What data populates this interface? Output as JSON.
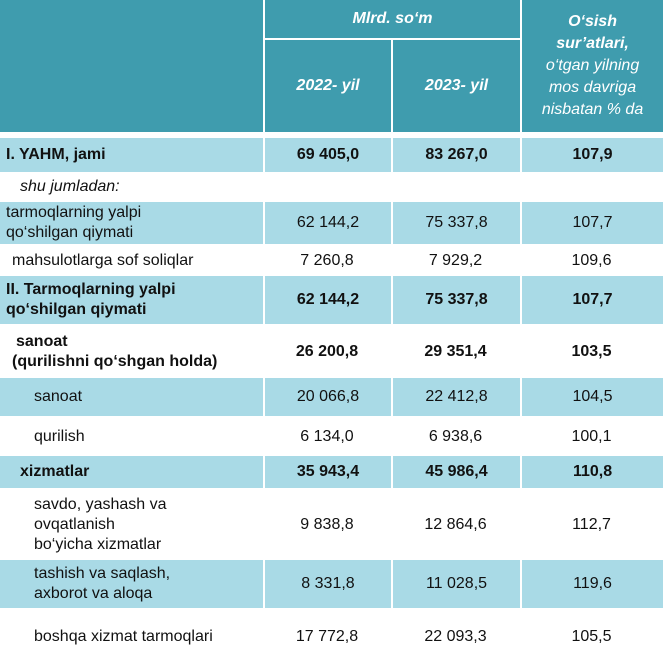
{
  "header": {
    "units": "Mlrd. so‘m",
    "year1": "2022- yil",
    "year2": "2023- yil",
    "growth_line1": "O‘sish",
    "growth_line2": "sur’atlari,",
    "growth_line3": "o‘tgan yilning",
    "growth_line4": "mos davriga",
    "growth_line5": "nisbatan % da"
  },
  "rows": [
    {
      "label": "I. YAHM, jami",
      "v2022": "69 405,0",
      "v2023": "83 267,0",
      "growth": "107,9"
    },
    {
      "label": "shu jumladan:"
    },
    {
      "label1": "tarmoqlarning yalpi",
      "label2": "qo‘shilgan qiymati",
      "v2022": "62 144,2",
      "v2023": "75 337,8",
      "growth": "107,7"
    },
    {
      "label": "mahsulotlarga sof soliqlar",
      "v2022": "7 260,8",
      "v2023": "7 929,2",
      "growth": "109,6"
    },
    {
      "label1": "II. Tarmoqlarning yalpi",
      "label2": "qo‘shilgan qiymati",
      "v2022": "62 144,2",
      "v2023": "75 337,8",
      "growth": "107,7"
    },
    {
      "label1": "sanoat",
      "label2": "(qurilishni qo‘shgan holda)",
      "v2022": "26 200,8",
      "v2023": "29 351,4",
      "growth": "103,5"
    },
    {
      "label": "sanoat",
      "v2022": "20 066,8",
      "v2023": "22 412,8",
      "growth": "104,5"
    },
    {
      "label": "qurilish",
      "v2022": "6 134,0",
      "v2023": "6 938,6",
      "growth": "100,1"
    },
    {
      "label": "xizmatlar",
      "v2022": "35 943,4",
      "v2023": "45 986,4",
      "growth": "110,8"
    },
    {
      "label1": "savdo, yashash va",
      "label2": "ovqatlanish",
      "label3": "bo‘yicha xizmatlar",
      "v2022": "9 838,8",
      "v2023": "12 864,6",
      "growth": "112,7"
    },
    {
      "label1": "tashish va saqlash,",
      "label2": "axborot va aloqa",
      "v2022": "8 331,8",
      "v2023": "11 028,5",
      "growth": "119,6"
    },
    {
      "label": "boshqa xizmat tarmoqlari",
      "v2022": "17 772,8",
      "v2023": "22 093,3",
      "growth": "105,5"
    }
  ]
}
